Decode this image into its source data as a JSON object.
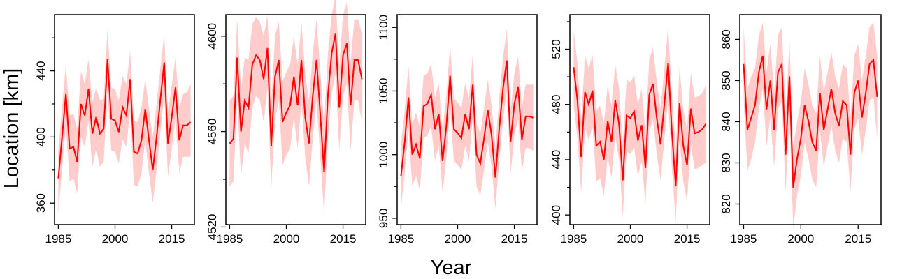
{
  "figure": {
    "xlabel": "Year",
    "ylabel": "Location [km]",
    "colors": {
      "line": "#ff0000",
      "band": "#ffcccc",
      "frame": "#000000"
    }
  },
  "chart_data": [
    {
      "type": "line",
      "title": "",
      "xlim": [
        1984,
        2021
      ],
      "ylim": [
        347,
        474
      ],
      "yticks": [
        360,
        400,
        440
      ],
      "yticks_minor": [
        380,
        420,
        460
      ],
      "xticks": [
        1985,
        2000,
        2015
      ],
      "x": [
        1985,
        1986,
        1987,
        1988,
        1989,
        1990,
        1991,
        1992,
        1993,
        1994,
        1995,
        1996,
        1997,
        1998,
        1999,
        2000,
        2001,
        2002,
        2003,
        2004,
        2005,
        2006,
        2007,
        2008,
        2009,
        2010,
        2011,
        2012,
        2013,
        2014,
        2015,
        2016,
        2017,
        2018,
        2019,
        2020
      ],
      "series": [
        {
          "role": "estimate",
          "values": [
            375,
            400,
            426,
            393,
            394,
            385,
            420,
            413,
            429,
            402,
            412,
            402,
            405,
            447,
            411,
            410,
            403,
            418,
            413,
            435,
            391,
            390,
            398,
            417,
            398,
            380,
            400,
            423,
            445,
            396,
            412,
            430,
            398,
            407,
            407,
            409
          ]
        },
        {
          "role": "interval_upper",
          "values": [
            392,
            418,
            444,
            413,
            414,
            405,
            440,
            432,
            447,
            421,
            430,
            422,
            423,
            465,
            430,
            429,
            422,
            437,
            432,
            452,
            410,
            409,
            418,
            435,
            417,
            400,
            420,
            442,
            462,
            415,
            431,
            448,
            418,
            426,
            427,
            432
          ]
        },
        {
          "role": "interval_lower",
          "values": [
            354,
            381,
            407,
            373,
            375,
            366,
            400,
            394,
            410,
            382,
            393,
            382,
            385,
            428,
            392,
            391,
            384,
            399,
            394,
            416,
            371,
            370,
            378,
            398,
            378,
            360,
            380,
            403,
            426,
            376,
            393,
            411,
            378,
            388,
            388,
            388
          ]
        }
      ]
    },
    {
      "type": "line",
      "title": "",
      "xlim": [
        1984,
        2021
      ],
      "ylim": [
        4521,
        4609
      ],
      "yticks": [
        4520,
        4560,
        4600
      ],
      "yticks_minor": [
        4540,
        4580
      ],
      "xticks": [
        1985,
        2000,
        2015
      ],
      "x": [
        1985,
        1986,
        1987,
        1988,
        1989,
        1990,
        1991,
        1992,
        1993,
        1994,
        1995,
        1996,
        1997,
        1998,
        1999,
        2000,
        2001,
        2002,
        2003,
        2004,
        2005,
        2006,
        2007,
        2008,
        2009,
        2010,
        2011,
        2012,
        2013,
        2014,
        2015,
        2016,
        2017,
        2018,
        2019,
        2020
      ],
      "series": [
        {
          "role": "estimate",
          "values": [
            4555,
            4557,
            4591,
            4560,
            4573,
            4570,
            4588,
            4592,
            4590,
            4582,
            4595,
            4554,
            4583,
            4590,
            4564,
            4568,
            4571,
            4583,
            4571,
            4590,
            4566,
            4555,
            4575,
            4590,
            4567,
            4543,
            4575,
            4593,
            4601,
            4570,
            4592,
            4597,
            4571,
            4590,
            4590,
            4582
          ]
        },
        {
          "role": "interval_upper",
          "values": [
            4573,
            4575,
            4607,
            4578,
            4591,
            4590,
            4605,
            4608,
            4606,
            4600,
            4609,
            4572,
            4600,
            4606,
            4581,
            4585,
            4588,
            4600,
            4588,
            4606,
            4584,
            4573,
            4593,
            4607,
            4585,
            4563,
            4593,
            4609,
            4617,
            4587,
            4609,
            4614,
            4589,
            4607,
            4607,
            4601
          ]
        },
        {
          "role": "interval_lower",
          "values": [
            4537,
            4539,
            4574,
            4541,
            4555,
            4551,
            4570,
            4575,
            4573,
            4564,
            4578,
            4536,
            4565,
            4573,
            4546,
            4550,
            4553,
            4566,
            4553,
            4573,
            4549,
            4537,
            4557,
            4573,
            4549,
            4525,
            4557,
            4576,
            4584,
            4552,
            4575,
            4580,
            4552,
            4573,
            4573,
            4564
          ]
        }
      ]
    },
    {
      "type": "line",
      "title": "",
      "xlim": [
        1984,
        2021
      ],
      "ylim": [
        945,
        1110
      ],
      "yticks": [
        950,
        1000,
        1050,
        1100
      ],
      "yticks_minor": [
        975,
        1025,
        1075
      ],
      "xticks": [
        1985,
        2000,
        2015
      ],
      "x": [
        1985,
        1986,
        1987,
        1988,
        1989,
        1990,
        1991,
        1992,
        1993,
        1994,
        1995,
        1996,
        1997,
        1998,
        1999,
        2000,
        2001,
        2002,
        2003,
        2004,
        2005,
        2006,
        2007,
        2008,
        2009,
        2010,
        2011,
        2012,
        2013,
        2014,
        2015,
        2016,
        2017,
        2018,
        2019,
        2020
      ],
      "series": [
        {
          "role": "estimate",
          "values": [
            983,
            1010,
            1045,
            1000,
            1008,
            997,
            1038,
            1040,
            1047,
            1020,
            1032,
            995,
            1022,
            1062,
            1020,
            1017,
            1013,
            1032,
            1020,
            1055,
            1000,
            993,
            1013,
            1035,
            1015,
            982,
            1020,
            1052,
            1074,
            1010,
            1040,
            1053,
            1012,
            1030,
            1030,
            1029
          ]
        },
        {
          "role": "interval_upper",
          "values": [
            1008,
            1035,
            1070,
            1024,
            1033,
            1022,
            1062,
            1064,
            1071,
            1045,
            1056,
            1019,
            1046,
            1086,
            1044,
            1041,
            1037,
            1056,
            1044,
            1079,
            1024,
            1017,
            1037,
            1059,
            1039,
            1006,
            1044,
            1076,
            1099,
            1034,
            1064,
            1077,
            1037,
            1055,
            1055,
            1055
          ]
        },
        {
          "role": "interval_lower",
          "values": [
            958,
            985,
            1020,
            975,
            983,
            972,
            1013,
            1015,
            1022,
            995,
            1007,
            970,
            997,
            1037,
            995,
            992,
            988,
            1007,
            995,
            1030,
            975,
            968,
            988,
            1010,
            990,
            957,
            995,
            1027,
            1049,
            985,
            1015,
            1028,
            987,
            1005,
            1005,
            1003
          ]
        }
      ]
    },
    {
      "type": "line",
      "title": "",
      "xlim": [
        1984,
        2021
      ],
      "ylim": [
        393,
        545
      ],
      "yticks": [
        400,
        440,
        480,
        520
      ],
      "yticks_minor": [
        420,
        460,
        500,
        540
      ],
      "xticks": [
        1985,
        2000,
        2015
      ],
      "x": [
        1985,
        1986,
        1987,
        1988,
        1989,
        1990,
        1991,
        1992,
        1993,
        1994,
        1995,
        1996,
        1997,
        1998,
        1999,
        2000,
        2001,
        2002,
        2003,
        2004,
        2005,
        2006,
        2007,
        2008,
        2009,
        2010,
        2011,
        2012,
        2013,
        2014,
        2015,
        2016,
        2017,
        2018,
        2019,
        2020
      ],
      "series": [
        {
          "role": "estimate",
          "values": [
            507,
            483,
            442,
            489,
            480,
            490,
            450,
            453,
            440,
            468,
            453,
            483,
            466,
            425,
            472,
            470,
            475,
            454,
            465,
            434,
            487,
            495,
            470,
            451,
            480,
            510,
            460,
            421,
            481,
            450,
            436,
            477,
            459,
            460,
            462,
            466
          ]
        },
        {
          "role": "interval_upper",
          "values": [
            534,
            510,
            468,
            515,
            506,
            516,
            476,
            479,
            466,
            494,
            479,
            509,
            492,
            451,
            498,
            496,
            501,
            480,
            491,
            460,
            513,
            521,
            496,
            477,
            506,
            536,
            486,
            447,
            507,
            476,
            462,
            503,
            485,
            486,
            488,
            494
          ]
        },
        {
          "role": "interval_lower",
          "values": [
            480,
            456,
            416,
            463,
            454,
            464,
            424,
            427,
            414,
            442,
            427,
            457,
            440,
            399,
            446,
            444,
            449,
            428,
            439,
            408,
            461,
            469,
            444,
            425,
            454,
            484,
            434,
            395,
            455,
            424,
            410,
            451,
            433,
            434,
            436,
            438
          ]
        }
      ]
    },
    {
      "type": "line",
      "title": "",
      "xlim": [
        1984,
        2021
      ],
      "ylim": [
        815,
        866
      ],
      "yticks": [
        820,
        830,
        840,
        850,
        860
      ],
      "yticks_minor": [],
      "xticks": [
        1985,
        2000,
        2015
      ],
      "x": [
        1985,
        1986,
        1987,
        1988,
        1989,
        1990,
        1991,
        1992,
        1993,
        1994,
        1995,
        1996,
        1997,
        1998,
        1999,
        2000,
        2001,
        2002,
        2003,
        2004,
        2005,
        2006,
        2007,
        2008,
        2009,
        2010,
        2011,
        2012,
        2013,
        2014,
        2015,
        2016,
        2017,
        2018,
        2019,
        2020
      ],
      "series": [
        {
          "role": "estimate",
          "values": [
            854,
            838,
            841,
            844,
            852,
            856,
            843,
            850,
            838,
            852,
            854,
            832,
            851,
            824,
            831,
            836,
            844,
            840,
            835,
            833,
            847,
            838,
            843,
            848,
            842,
            839,
            845,
            844,
            832,
            847,
            850,
            841,
            847,
            854,
            855,
            846
          ]
        },
        {
          "role": "interval_upper",
          "values": [
            863,
            848,
            851,
            853,
            861,
            864,
            852,
            859,
            847,
            861,
            863,
            841,
            860,
            834,
            840,
            845,
            853,
            849,
            844,
            842,
            856,
            847,
            852,
            857,
            851,
            848,
            854,
            853,
            841,
            856,
            859,
            850,
            856,
            863,
            864,
            856
          ]
        },
        {
          "role": "interval_lower",
          "values": [
            845,
            828,
            831,
            835,
            843,
            848,
            834,
            841,
            829,
            843,
            845,
            823,
            842,
            814,
            822,
            827,
            835,
            831,
            826,
            824,
            838,
            829,
            834,
            839,
            833,
            830,
            836,
            835,
            823,
            838,
            841,
            832,
            838,
            845,
            846,
            836
          ]
        }
      ]
    }
  ]
}
